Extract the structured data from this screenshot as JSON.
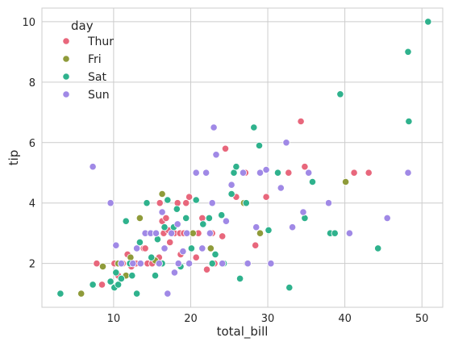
{
  "chart_data": {
    "type": "scatter",
    "title": "",
    "xlabel": "total_bill",
    "ylabel": "tip",
    "xlim": [
      0.7,
      52.7
    ],
    "ylim": [
      0.55,
      10.45
    ],
    "xticks": [
      10,
      20,
      30,
      40,
      50
    ],
    "yticks": [
      2,
      4,
      6,
      8,
      10
    ],
    "grid": true,
    "legend": {
      "title": "day",
      "placement": "top-left"
    },
    "series": [
      {
        "name": "Thur",
        "color": "#e8677c",
        "points": [
          [
            7.8,
            2.0
          ],
          [
            8.5,
            1.3
          ],
          [
            10.1,
            2.0
          ],
          [
            10.6,
            1.6
          ],
          [
            11.2,
            2.0
          ],
          [
            11.8,
            2.3
          ],
          [
            12.3,
            1.9
          ],
          [
            12.6,
            2.0
          ],
          [
            13.1,
            2.0
          ],
          [
            13.5,
            2.0
          ],
          [
            13.9,
            2.5
          ],
          [
            14.4,
            2.0
          ],
          [
            15.0,
            2.0
          ],
          [
            15.4,
            3.0
          ],
          [
            15.9,
            2.2
          ],
          [
            16.3,
            3.4
          ],
          [
            16.5,
            3.0
          ],
          [
            16.8,
            3.5
          ],
          [
            17.1,
            3.1
          ],
          [
            17.3,
            2.7
          ],
          [
            17.9,
            3.0
          ],
          [
            18.3,
            4.0
          ],
          [
            18.6,
            3.0
          ],
          [
            19.1,
            3.0
          ],
          [
            19.4,
            4.0
          ],
          [
            19.8,
            4.2
          ],
          [
            20.3,
            3.0
          ],
          [
            20.7,
            2.2
          ],
          [
            21.0,
            3.0
          ],
          [
            21.5,
            3.5
          ],
          [
            22.1,
            1.8
          ],
          [
            22.8,
            3.0
          ],
          [
            23.1,
            2.0
          ],
          [
            24.1,
            2.9
          ],
          [
            24.5,
            5.8
          ],
          [
            25.9,
            4.2
          ],
          [
            27.1,
            5.0
          ],
          [
            28.4,
            2.6
          ],
          [
            29.8,
            4.2
          ],
          [
            32.7,
            5.0
          ],
          [
            34.3,
            6.7
          ],
          [
            34.8,
            5.2
          ],
          [
            41.2,
            5.0
          ],
          [
            43.1,
            5.0
          ],
          [
            12.9,
            2.0
          ],
          [
            14.1,
            2.5
          ],
          [
            16.0,
            4.0
          ],
          [
            18.7,
            2.3
          ]
        ]
      },
      {
        "name": "Fri",
        "color": "#8f9b3a",
        "points": [
          [
            5.8,
            1.0
          ],
          [
            8.6,
            1.9
          ],
          [
            10.6,
            2.0
          ],
          [
            12.2,
            2.2
          ],
          [
            13.4,
            3.5
          ],
          [
            15.4,
            2.1
          ],
          [
            16.3,
            4.3
          ],
          [
            20.3,
            3.0
          ],
          [
            22.6,
            2.5
          ],
          [
            26.9,
            4.0
          ],
          [
            27.3,
            2.0
          ],
          [
            29.0,
            3.0
          ],
          [
            40.1,
            4.7
          ],
          [
            11.6,
            1.6
          ]
        ]
      },
      {
        "name": "Sat",
        "color": "#2fb28d",
        "points": [
          [
            3.1,
            1.0
          ],
          [
            7.3,
            1.3
          ],
          [
            9.6,
            1.4
          ],
          [
            10.1,
            1.2
          ],
          [
            10.3,
            1.7
          ],
          [
            10.6,
            1.3
          ],
          [
            11.0,
            1.5
          ],
          [
            11.6,
            3.4
          ],
          [
            12.4,
            1.6
          ],
          [
            13.0,
            1.0
          ],
          [
            13.4,
            2.7
          ],
          [
            14.3,
            4.0
          ],
          [
            14.9,
            2.2
          ],
          [
            15.4,
            1.6
          ],
          [
            15.7,
            2.8
          ],
          [
            16.6,
            3.2
          ],
          [
            17.0,
            4.1
          ],
          [
            17.8,
            3.2
          ],
          [
            18.2,
            3.8
          ],
          [
            18.7,
            1.9
          ],
          [
            19.4,
            3.5
          ],
          [
            20.1,
            2.5
          ],
          [
            20.7,
            4.1
          ],
          [
            21.6,
            3.3
          ],
          [
            22.4,
            3.5
          ],
          [
            22.8,
            2.0
          ],
          [
            23.2,
            2.3
          ],
          [
            24.0,
            3.6
          ],
          [
            24.3,
            2.0
          ],
          [
            25.3,
            4.3
          ],
          [
            25.6,
            5.0
          ],
          [
            25.9,
            5.2
          ],
          [
            26.4,
            1.5
          ],
          [
            27.2,
            4.0
          ],
          [
            28.2,
            6.5
          ],
          [
            28.9,
            5.9
          ],
          [
            30.1,
            3.1
          ],
          [
            31.3,
            5.0
          ],
          [
            32.8,
            1.2
          ],
          [
            34.8,
            3.5
          ],
          [
            35.8,
            4.7
          ],
          [
            38.1,
            3.0
          ],
          [
            38.7,
            3.0
          ],
          [
            39.4,
            7.6
          ],
          [
            44.3,
            2.5
          ],
          [
            48.2,
            9.0
          ],
          [
            48.3,
            6.7
          ],
          [
            50.8,
            10.0
          ],
          [
            12.1,
            2.0
          ],
          [
            16.3,
            2.0
          ]
        ]
      },
      {
        "name": "Sun",
        "color": "#a089e6",
        "points": [
          [
            7.3,
            5.2
          ],
          [
            9.6,
            4.0
          ],
          [
            10.3,
            2.6
          ],
          [
            11.0,
            2.0
          ],
          [
            12.5,
            2.0
          ],
          [
            13.0,
            2.5
          ],
          [
            13.5,
            2.0
          ],
          [
            14.1,
            3.0
          ],
          [
            14.8,
            3.0
          ],
          [
            15.5,
            3.0
          ],
          [
            15.9,
            2.0
          ],
          [
            16.3,
            3.7
          ],
          [
            16.6,
            2.5
          ],
          [
            17.0,
            1.0
          ],
          [
            17.5,
            3.0
          ],
          [
            17.9,
            1.7
          ],
          [
            18.4,
            2.0
          ],
          [
            19.0,
            2.4
          ],
          [
            19.5,
            3.0
          ],
          [
            19.8,
            2.0
          ],
          [
            20.7,
            5.0
          ],
          [
            21.5,
            2.5
          ],
          [
            22.0,
            5.0
          ],
          [
            22.8,
            4.0
          ],
          [
            23.0,
            6.5
          ],
          [
            23.3,
            5.6
          ],
          [
            24.1,
            2.0
          ],
          [
            24.6,
            3.4
          ],
          [
            25.3,
            4.6
          ],
          [
            26.8,
            5.0
          ],
          [
            27.4,
            2.0
          ],
          [
            28.5,
            3.2
          ],
          [
            29.8,
            5.1
          ],
          [
            30.4,
            2.0
          ],
          [
            31.7,
            4.5
          ],
          [
            32.4,
            6.0
          ],
          [
            33.2,
            3.2
          ],
          [
            34.6,
            3.7
          ],
          [
            35.3,
            5.0
          ],
          [
            37.9,
            4.0
          ],
          [
            40.6,
            3.0
          ],
          [
            45.5,
            3.5
          ],
          [
            48.2,
            5.0
          ],
          [
            29.0,
            5.0
          ],
          [
            22.5,
            3.0
          ],
          [
            18.3,
            3.3
          ]
        ]
      }
    ]
  }
}
